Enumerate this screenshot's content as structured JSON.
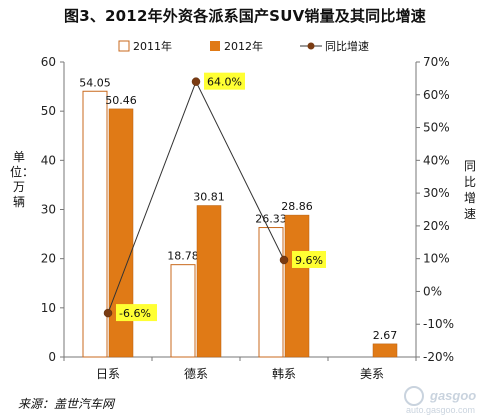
{
  "chart_data": {
    "type": "bar",
    "title": "图3、2012年外资各派系国产SUV销量及其同比增速",
    "categories": [
      "日系",
      "德系",
      "韩系",
      "美系"
    ],
    "series": [
      {
        "name": "2011年",
        "type": "bar",
        "axis": "left",
        "color": "#ffffff",
        "border": "#c8691c",
        "values": [
          54.05,
          18.78,
          26.33,
          null
        ],
        "labels": [
          "54.05",
          "18.78",
          "26.33",
          ""
        ]
      },
      {
        "name": "2012年",
        "type": "bar",
        "axis": "left",
        "color": "#e07a16",
        "values": [
          50.46,
          30.81,
          28.86,
          2.67
        ],
        "labels": [
          "50.46",
          "30.81",
          "28.86",
          "2.67"
        ]
      },
      {
        "name": "同比增速",
        "type": "line",
        "axis": "right",
        "color": "#7a3b12",
        "values": [
          -6.6,
          64.0,
          9.6,
          null
        ],
        "labels": [
          "-6.6%",
          "64.0%",
          "9.6%",
          ""
        ]
      }
    ],
    "ylabel": "单位：万辆",
    "y2label": "同比增速",
    "ylim": [
      0,
      60
    ],
    "y2lim": [
      -20,
      70
    ],
    "yticks": [
      "0",
      "10",
      "20",
      "30",
      "40",
      "50",
      "60"
    ],
    "y2ticks": [
      "-20%",
      "-10%",
      "0%",
      "10%",
      "20%",
      "30%",
      "40%",
      "50%",
      "60%",
      "70%"
    ],
    "grid": false,
    "legend": "top",
    "label_highlight": "#ffff33"
  },
  "source": "来源：盖世汽车网",
  "watermark": "auto.gasgoo.com"
}
